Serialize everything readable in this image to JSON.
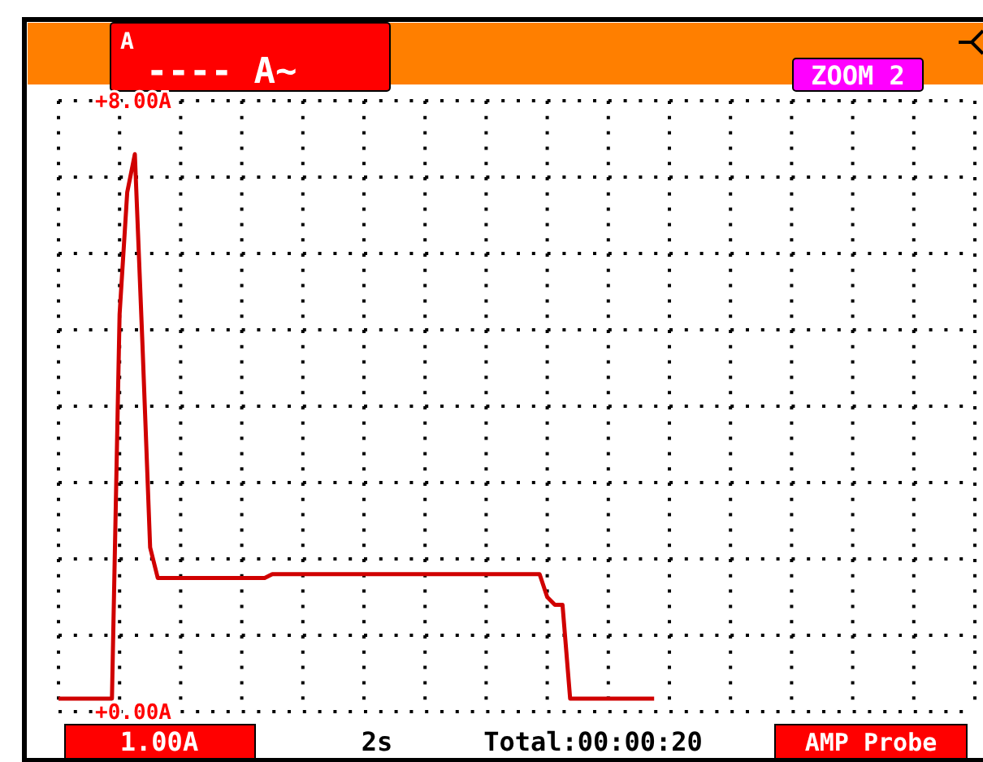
{
  "chart_data": {
    "type": "line",
    "categories": [
      null,
      null,
      null,
      null,
      null,
      null,
      null,
      null,
      null,
      null,
      null,
      null,
      null,
      null,
      null,
      null,
      null,
      null,
      null,
      null,
      null,
      null,
      null,
      null,
      null,
      null,
      null,
      null,
      null,
      null,
      null,
      null,
      null,
      null,
      null,
      null,
      null,
      null,
      null,
      null,
      null,
      null,
      null,
      null,
      null,
      null,
      null,
      null,
      null,
      null,
      null,
      null,
      null,
      null,
      null,
      null,
      null,
      null,
      null,
      null,
      null,
      null,
      null,
      null,
      null,
      null,
      null,
      null,
      null,
      null,
      null,
      null,
      null,
      null,
      null,
      null,
      null,
      null,
      null,
      null,
      null,
      null,
      null,
      null,
      null,
      null,
      null,
      null,
      null,
      null,
      null,
      null,
      null,
      null,
      null,
      null,
      null,
      null,
      null,
      null,
      null,
      null,
      null,
      null,
      null,
      null,
      null,
      null,
      null,
      null,
      null,
      null,
      null,
      null,
      null,
      null,
      null,
      null,
      null,
      null,
      null
    ],
    "series": [
      {
        "color": "#d00000",
        "values": [
          0.17,
          0.17,
          0.17,
          0.17,
          0.17,
          0.17,
          0.17,
          0.17,
          5.2,
          6.8,
          7.3,
          4.8,
          2.15,
          1.75,
          1.75,
          1.75,
          1.75,
          1.75,
          1.75,
          1.75,
          1.75,
          1.75,
          1.75,
          1.75,
          1.75,
          1.75,
          1.75,
          1.75,
          1.8,
          1.8,
          1.8,
          1.8,
          1.8,
          1.8,
          1.8,
          1.8,
          1.8,
          1.8,
          1.8,
          1.8,
          1.8,
          1.8,
          1.8,
          1.8,
          1.8,
          1.8,
          1.8,
          1.8,
          1.8,
          1.8,
          1.8,
          1.8,
          1.8,
          1.8,
          1.8,
          1.8,
          1.8,
          1.8,
          1.8,
          1.8,
          1.8,
          1.8,
          1.8,
          1.8,
          1.5,
          1.4,
          1.4,
          0.17,
          0.17,
          0.17,
          0.17,
          0.17,
          0.17,
          0.17,
          0.17,
          0.17,
          0.17,
          0.17,
          0.17,
          null,
          null,
          null,
          null,
          null,
          null,
          null,
          null,
          null,
          null,
          null,
          null,
          null,
          null,
          null,
          null,
          null,
          null,
          null,
          null,
          null,
          null,
          null,
          null,
          null,
          null,
          null,
          null,
          null,
          null,
          null,
          null,
          null,
          null,
          null,
          null,
          null,
          null,
          null,
          null,
          null,
          null
        ]
      }
    ],
    "ylim": [
      0,
      8
    ],
    "yticks": [
      {
        "value": 0,
        "label": "+0.00A"
      },
      {
        "value": 1,
        "label": null
      },
      {
        "value": 2,
        "label": null
      },
      {
        "value": 3,
        "label": null
      },
      {
        "value": 4,
        "label": null
      },
      {
        "value": 5,
        "label": null
      },
      {
        "value": 6,
        "label": null
      },
      {
        "value": 7,
        "label": null
      },
      {
        "value": 8,
        "label": "+8.00A"
      }
    ],
    "grid": true,
    "line_style": "solid",
    "marker": "none",
    "annotations": [
      "A",
      "---- A~",
      "ZOOM 2",
      "1.00A",
      "2s",
      "Total:00:00:20",
      "AMP Probe"
    ]
  }
}
